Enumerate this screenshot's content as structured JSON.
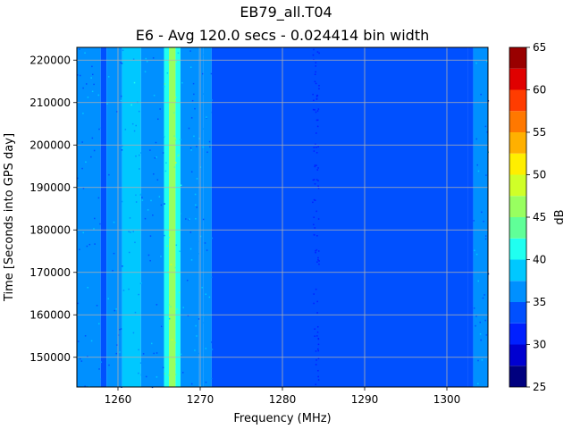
{
  "chart_data": {
    "type": "heatmap",
    "title": "EB79_all.T04",
    "subtitle": "E6 - Avg 120.0 secs - 0.024414 bin width",
    "xlabel": "Frequency (MHz)",
    "ylabel": "Time [Seconds into GPS day]",
    "xlim": [
      1255.0,
      1305.0
    ],
    "ylim": [
      143000,
      223000
    ],
    "x_ticks": [
      1260,
      1270,
      1280,
      1290,
      1300
    ],
    "y_ticks": [
      150000,
      160000,
      170000,
      180000,
      190000,
      200000,
      210000,
      220000
    ],
    "grid": true,
    "colorbar": {
      "label": "dB",
      "min": 25,
      "max": 65,
      "ticks": [
        25,
        30,
        35,
        40,
        45,
        50,
        55,
        60,
        65
      ],
      "levels": [
        25,
        27.5,
        30,
        32.5,
        35,
        37.5,
        40,
        42.5,
        45,
        47.5,
        50,
        52.5,
        55,
        57.5,
        60,
        62.5,
        65
      ],
      "colors": [
        "#00007f",
        "#0000d0",
        "#0020ff",
        "#0050ff",
        "#0090ff",
        "#00c8ff",
        "#20fff0",
        "#60ff98",
        "#98ff60",
        "#d0ff28",
        "#ffee00",
        "#ffb000",
        "#ff7800",
        "#ff3c00",
        "#e00000",
        "#990000"
      ]
    },
    "frequency_profile": [
      {
        "from": 1255.0,
        "to": 1257.9,
        "level": 35.5
      },
      {
        "from": 1257.9,
        "to": 1258.6,
        "level": 34.0
      },
      {
        "from": 1258.6,
        "to": 1260.5,
        "level": 36.0
      },
      {
        "from": 1260.5,
        "to": 1262.8,
        "level": 38.0
      },
      {
        "from": 1262.8,
        "to": 1265.6,
        "level": 36.0
      },
      {
        "from": 1265.6,
        "to": 1266.2,
        "level": 42.0
      },
      {
        "from": 1266.2,
        "to": 1267.0,
        "level": 46.0
      },
      {
        "from": 1267.0,
        "to": 1267.6,
        "level": 41.0
      },
      {
        "from": 1267.6,
        "to": 1269.8,
        "level": 36.0
      },
      {
        "from": 1269.8,
        "to": 1270.4,
        "level": 37.0
      },
      {
        "from": 1270.4,
        "to": 1271.4,
        "level": 35.5
      },
      {
        "from": 1271.4,
        "to": 1302.6,
        "level": 33.5
      },
      {
        "from": 1302.6,
        "to": 1303.2,
        "level": 34.5
      },
      {
        "from": 1303.2,
        "to": 1305.0,
        "level": 36.0
      }
    ]
  }
}
